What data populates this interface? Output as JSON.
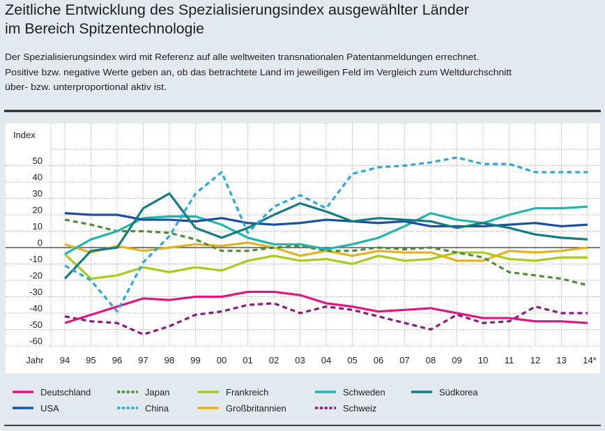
{
  "header": {
    "title_lines": [
      "Zeitliche Entwicklung des Spezialisierungsindex ausgewählter Länder",
      "im Bereich Spitzentechnologie"
    ],
    "description_lines": [
      "Der Spezialisierungsindex wird mit Referenz auf alle weltweiten transnationalen Patentanmeldungen errechnet.",
      "Positive bzw. negative Werte geben an, ob das betrachtete Land im jeweiligen Feld im Vergleich zum Weltdurchschnitt",
      "über- bzw. unterproportional aktiv ist."
    ]
  },
  "chart_data": {
    "type": "line",
    "title": "Zeitliche Entwicklung des Spezialisierungsindex ausgewählter Länder im Bereich Spitzentechnologie",
    "xlabel": "Jahr",
    "ylabel": "Index",
    "ylim": [
      -60,
      60
    ],
    "grid_step": 10,
    "grid": true,
    "legend_position": "bottom",
    "y_ticks": [
      50,
      40,
      30,
      20,
      10,
      0,
      -10,
      -20,
      -30,
      -40,
      -50,
      -60
    ],
    "x_ticks": [
      "94",
      "95",
      "96",
      "97",
      "98",
      "99",
      "00",
      "01",
      "02",
      "03",
      "04",
      "05",
      "06",
      "07",
      "08",
      "09",
      "10",
      "11",
      "12",
      "13",
      "14*"
    ],
    "series": [
      {
        "name": "Deutschland",
        "color": "#e2147f",
        "style": "solid",
        "values": [
          -46,
          -41,
          -36,
          -31,
          -32,
          -30,
          -30,
          -27,
          -27,
          -29,
          -34,
          -36,
          -39,
          -38,
          -37,
          -40,
          -43,
          -43,
          -45,
          -45,
          -46
        ]
      },
      {
        "name": "USA",
        "color": "#1d4f9e",
        "style": "solid",
        "values": [
          21,
          20,
          20,
          17,
          17,
          16,
          18,
          15,
          14,
          15,
          17,
          16,
          15,
          16,
          13,
          13,
          13,
          14,
          15,
          13,
          14
        ]
      },
      {
        "name": "Japan",
        "color": "#4d8b38",
        "style": "dashed",
        "values": [
          17,
          14,
          10,
          10,
          9,
          5,
          -2,
          -2,
          0,
          1,
          -2,
          -2,
          0,
          -1,
          0,
          -3,
          -6,
          -15,
          -17,
          -19,
          -23
        ]
      },
      {
        "name": "China",
        "color": "#2aa7e1",
        "style": "dashed",
        "values": [
          -11,
          -20,
          -39,
          -9,
          7,
          33,
          46,
          9,
          25,
          32,
          24,
          45,
          49,
          50,
          52,
          55,
          51,
          51,
          46,
          46,
          46
        ]
      },
      {
        "name": "Frankreich",
        "color": "#a7cb1e",
        "style": "solid",
        "values": [
          -4,
          -19,
          -17,
          -12,
          -15,
          -12,
          -14,
          -8,
          -5,
          -8,
          -7,
          -10,
          -5,
          -8,
          -7,
          -3,
          -3,
          -7,
          -8,
          -6,
          -6
        ]
      },
      {
        "name": "Großbritannien",
        "color": "#e3b21c",
        "style": "solid",
        "values": [
          2,
          -3,
          1,
          -2,
          0,
          2,
          1,
          3,
          0,
          -5,
          -2,
          -5,
          -2,
          -3,
          -3,
          -8,
          -8,
          -2,
          -3,
          -2,
          0
        ]
      },
      {
        "name": "Schweden",
        "color": "#1fb5ad",
        "style": "solid",
        "values": [
          -4,
          5,
          10,
          18,
          19,
          19,
          14,
          6,
          2,
          2,
          -1,
          2,
          6,
          13,
          21,
          17,
          15,
          20,
          24,
          24,
          25
        ]
      },
      {
        "name": "Schweiz",
        "color": "#8b1a7e",
        "style": "dashed",
        "values": [
          -42,
          -45,
          -46,
          -53,
          -48,
          -41,
          -39,
          -35,
          -34,
          -40,
          -36,
          -38,
          -42,
          -46,
          -50,
          -41,
          -46,
          -45,
          -36,
          -40,
          -40
        ]
      },
      {
        "name": "Südkorea",
        "color": "#137c82",
        "style": "solid",
        "values": [
          -19,
          -2,
          0,
          24,
          33,
          12,
          6,
          12,
          20,
          27,
          22,
          16,
          18,
          17,
          16,
          12,
          15,
          12,
          8,
          6,
          5
        ]
      }
    ]
  }
}
